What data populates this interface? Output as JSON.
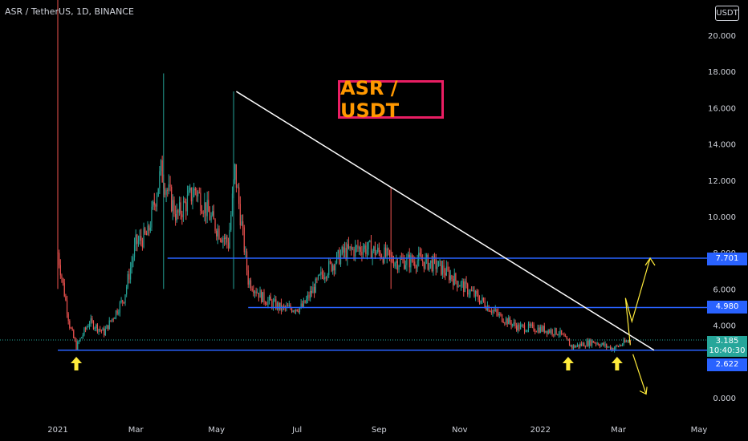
{
  "header": {
    "symbol_text": "ASR / TetherUS, 1D, BINANCE",
    "currency_label": "USDT"
  },
  "annotation": {
    "title": "ASR / USDT",
    "title_color": "#ff9800",
    "border_color": "#e91e63"
  },
  "price_tags": {
    "level_top": "7.701",
    "level_mid": "4.980",
    "level_low": "2.622",
    "current_price": "3.185",
    "countdown": "10:40:30"
  },
  "colors": {
    "background": "#000000",
    "up_candle": "#26a69a",
    "down_candle": "#ef5350",
    "support_line": "#2962ff",
    "trendline": "#ffffff",
    "arrow_up_marker": "#ffeb3b",
    "projection_arrow": "#ffeb3b"
  },
  "chart_data": {
    "type": "candlestick",
    "x_axis_labels": [
      "2021",
      "Mar",
      "May",
      "Jul",
      "Sep",
      "Nov",
      "2022",
      "Mar",
      "May"
    ],
    "y_axis_labels": [
      "20.000",
      "18.000",
      "16.000",
      "14.000",
      "12.000",
      "10.000",
      "8.000",
      "6.000",
      "4.000",
      "0.000"
    ],
    "ylim": [
      0,
      20
    ],
    "close_series": [
      {
        "date": "2021-01-01",
        "value": 8.0
      },
      {
        "date": "2021-01-10",
        "value": 4.0
      },
      {
        "date": "2021-01-15",
        "value": 2.8
      },
      {
        "date": "2021-01-25",
        "value": 4.2
      },
      {
        "date": "2021-02-05",
        "value": 3.6
      },
      {
        "date": "2021-02-20",
        "value": 5.5
      },
      {
        "date": "2021-03-01",
        "value": 8.5
      },
      {
        "date": "2021-03-10",
        "value": 9.0
      },
      {
        "date": "2021-03-20",
        "value": 12.5
      },
      {
        "date": "2021-04-01",
        "value": 10.0
      },
      {
        "date": "2021-04-15",
        "value": 11.5
      },
      {
        "date": "2021-04-30",
        "value": 9.5
      },
      {
        "date": "2021-05-10",
        "value": 8.5
      },
      {
        "date": "2021-05-15",
        "value": 12.5
      },
      {
        "date": "2021-05-25",
        "value": 6.5
      },
      {
        "date": "2021-06-05",
        "value": 5.5
      },
      {
        "date": "2021-06-20",
        "value": 4.9
      },
      {
        "date": "2021-07-05",
        "value": 5.0
      },
      {
        "date": "2021-07-20",
        "value": 6.8
      },
      {
        "date": "2021-08-05",
        "value": 8.0
      },
      {
        "date": "2021-08-20",
        "value": 8.3
      },
      {
        "date": "2021-09-01",
        "value": 8.0
      },
      {
        "date": "2021-09-15",
        "value": 7.5
      },
      {
        "date": "2021-10-01",
        "value": 7.6
      },
      {
        "date": "2021-10-15",
        "value": 7.3
      },
      {
        "date": "2021-11-01",
        "value": 6.3
      },
      {
        "date": "2021-11-15",
        "value": 5.5
      },
      {
        "date": "2021-12-01",
        "value": 4.5
      },
      {
        "date": "2021-12-15",
        "value": 3.9
      },
      {
        "date": "2022-01-01",
        "value": 3.8
      },
      {
        "date": "2022-01-15",
        "value": 3.6
      },
      {
        "date": "2022-01-25",
        "value": 2.8
      },
      {
        "date": "2022-02-10",
        "value": 3.1
      },
      {
        "date": "2022-02-25",
        "value": 2.7
      },
      {
        "date": "2022-03-10",
        "value": 3.185
      }
    ],
    "horizontal_levels": [
      7.701,
      4.98,
      2.622
    ],
    "trendline": {
      "from": {
        "date": "2021-05-16",
        "value": 16.9
      },
      "to": {
        "date": "2022-03-28",
        "value": 2.622
      }
    },
    "marker_dates": [
      "2021-01-15",
      "2022-01-22",
      "2022-02-28"
    ],
    "projection_up": {
      "from": {
        "date": "2022-03-10",
        "value": 2.9
      },
      "to": {
        "date": "2022-03-25",
        "value": 7.7
      }
    },
    "projection_down": {
      "from": {
        "date": "2022-03-12",
        "value": 2.4
      },
      "to": {
        "date": "2022-03-22",
        "value": 0.2
      }
    }
  }
}
